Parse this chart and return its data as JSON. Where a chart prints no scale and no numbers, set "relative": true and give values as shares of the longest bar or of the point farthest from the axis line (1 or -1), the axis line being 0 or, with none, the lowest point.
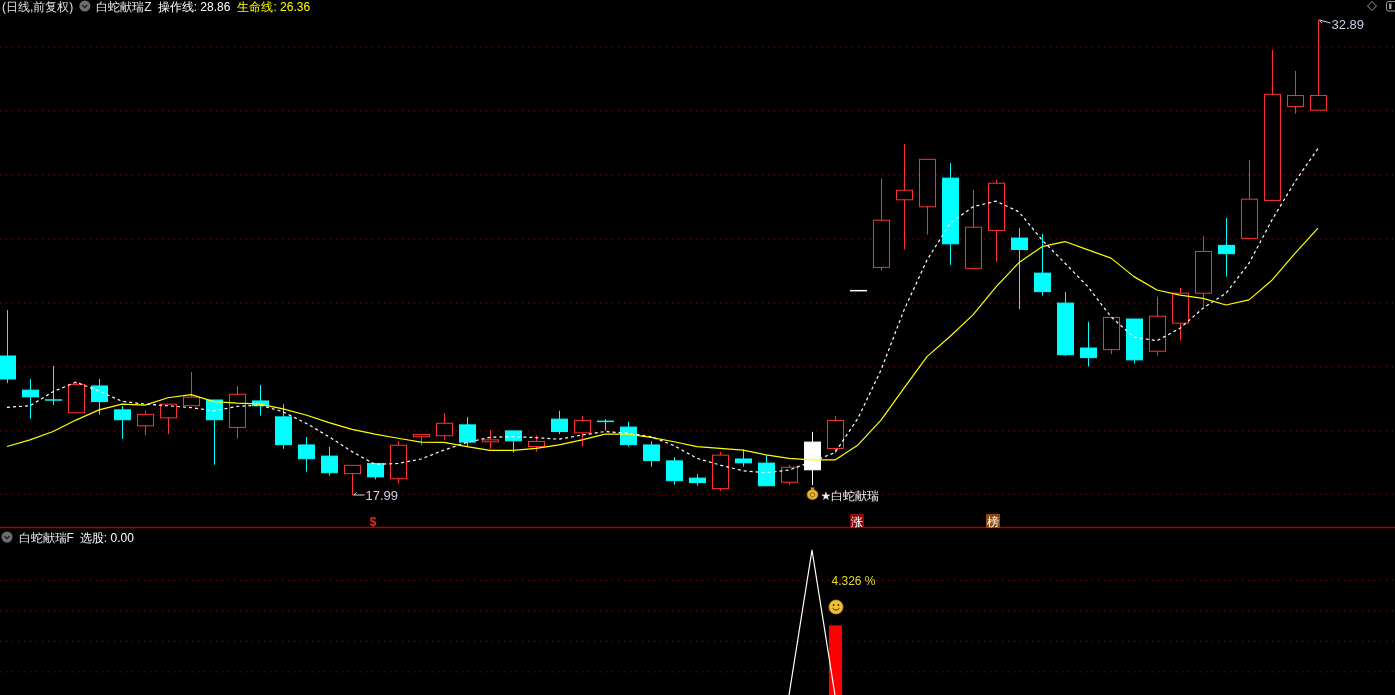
{
  "chart_data": [
    {
      "type": "candlestick",
      "title": "(日线,前复权)",
      "legend_title": "白蛇献瑞Z",
      "legend": "top left",
      "ref_lines": [
        {
          "axis": "y",
          "value": 18.01,
          "color": "#7a1414",
          "line_style": "dotted"
        },
        {
          "axis": "y",
          "value": 20.0,
          "color": "#7a1414",
          "line_style": "dotted"
        },
        {
          "axis": "y",
          "value": 22.01,
          "color": "#7a1414",
          "line_style": "dotted"
        },
        {
          "axis": "y",
          "value": 24.01,
          "color": "#7a1414",
          "line_style": "dotted"
        },
        {
          "axis": "y",
          "value": 26.02,
          "color": "#7a1414",
          "line_style": "dotted"
        },
        {
          "axis": "y",
          "value": 28.03,
          "color": "#7a1414",
          "line_style": "dotted"
        },
        {
          "axis": "y",
          "value": 30.04,
          "color": "#7a1414",
          "line_style": "dotted"
        },
        {
          "axis": "y",
          "value": 32.04,
          "color": "#7a1414",
          "line_style": "dotted"
        }
      ],
      "categories": [
        null,
        null,
        null,
        null,
        null,
        null,
        null,
        null,
        null,
        null,
        null,
        null,
        null,
        null,
        null,
        null,
        null,
        null,
        null,
        null,
        null,
        null,
        null,
        null,
        null,
        null,
        null,
        null,
        null,
        null,
        null,
        null,
        null,
        null,
        null,
        null,
        null,
        null,
        null,
        null,
        null,
        null,
        null,
        null,
        null,
        null,
        null,
        null,
        null,
        null,
        null,
        null,
        null,
        null,
        null,
        null,
        null,
        null
      ],
      "ohlc": [
        [
          22.35,
          23.79,
          21.5,
          21.63
        ],
        [
          21.28,
          21.63,
          20.38,
          21.07
        ],
        [
          20.97,
          22.04,
          20.81,
          20.97
        ],
        [
          20.57,
          21.54,
          20.57,
          21.46
        ],
        [
          21.41,
          21.63,
          20.51,
          20.92
        ],
        [
          20.66,
          20.78,
          19.75,
          20.35
        ],
        [
          20.16,
          20.63,
          19.87,
          20.52
        ],
        [
          20.41,
          20.84,
          19.9,
          20.84
        ],
        [
          20.79,
          21.85,
          20.79,
          21.06
        ],
        [
          20.97,
          20.97,
          18.94,
          20.35
        ],
        [
          20.11,
          21.41,
          19.76,
          21.15
        ],
        [
          20.94,
          21.44,
          20.48,
          20.79
        ],
        [
          20.44,
          20.84,
          19.44,
          19.57
        ],
        [
          19.56,
          19.81,
          18.72,
          19.13
        ],
        [
          19.21,
          19.5,
          18.6,
          18.69
        ],
        [
          18.66,
          18.92,
          17.99,
          18.92
        ],
        [
          18.98,
          18.98,
          18.48,
          18.56
        ],
        [
          18.5,
          19.68,
          18.36,
          19.55
        ],
        [
          19.82,
          19.89,
          19.54,
          19.89
        ],
        [
          19.85,
          20.56,
          19.72,
          20.24
        ],
        [
          20.19,
          20.44,
          19.5,
          19.65
        ],
        [
          19.66,
          20.03,
          19.43,
          19.72
        ],
        [
          20.0,
          20.0,
          19.32,
          19.69
        ],
        [
          19.51,
          19.86,
          19.35,
          19.67
        ],
        [
          20.37,
          20.63,
          19.9,
          19.98
        ],
        [
          19.94,
          20.47,
          19.51,
          20.33
        ],
        [
          20.3,
          20.37,
          20.01,
          20.3
        ],
        [
          20.12,
          20.28,
          19.51,
          19.57
        ],
        [
          19.56,
          19.68,
          18.88,
          19.07
        ],
        [
          19.06,
          19.18,
          18.31,
          18.44
        ],
        [
          18.52,
          18.65,
          18.28,
          18.38
        ],
        [
          18.19,
          19.34,
          18.12,
          19.24
        ],
        [
          19.12,
          19.42,
          18.88,
          19.0
        ],
        [
          18.99,
          19.24,
          18.28,
          18.28
        ],
        [
          18.39,
          18.93,
          18.31,
          18.86
        ],
        [
          18.78,
          19.97,
          18.3,
          19.65
        ],
        [
          19.45,
          20.47,
          19.3,
          20.33
        ],
        [
          24.4,
          24.4,
          24.4,
          24.4
        ],
        [
          25.13,
          27.92,
          25.03,
          26.61
        ],
        [
          27.25,
          29.0,
          25.69,
          27.55
        ],
        [
          27.03,
          28.52,
          26.16,
          28.52
        ],
        [
          27.93,
          28.4,
          25.21,
          25.87
        ],
        [
          25.1,
          27.56,
          25.1,
          26.39
        ],
        [
          26.29,
          27.87,
          25.31,
          27.77
        ],
        [
          26.05,
          26.37,
          23.82,
          25.69
        ],
        [
          24.95,
          26.18,
          24.24,
          24.37
        ],
        [
          24.01,
          24.36,
          22.36,
          22.39
        ],
        [
          22.6,
          23.42,
          22.02,
          22.3
        ],
        [
          22.55,
          23.56,
          22.41,
          23.56
        ],
        [
          23.51,
          23.51,
          22.12,
          22.23
        ],
        [
          22.5,
          24.21,
          22.36,
          23.6
        ],
        [
          23.38,
          24.49,
          22.83,
          24.32
        ],
        [
          24.32,
          26.11,
          23.9,
          25.63
        ],
        [
          25.82,
          26.68,
          24.84,
          25.56
        ],
        [
          26.04,
          28.5,
          26.04,
          27.27
        ],
        [
          27.23,
          31.95,
          27.23,
          30.56
        ],
        [
          30.18,
          31.29,
          29.95,
          30.52
        ],
        [
          30.06,
          32.89,
          30.06,
          30.52
        ]
      ],
      "colors": [
        "#00ffff",
        "#00ffff",
        "#00ffff",
        "#ff3232",
        "#00ffff",
        "#00ffff",
        "#ff3232",
        "#ff3232",
        "#ff3232",
        "#00ffff",
        "#ff3232",
        "#00ffff",
        "#00ffff",
        "#00ffff",
        "#00ffff",
        "#ff3232",
        "#00ffff",
        "#ff3232",
        "#ff3232",
        "#ff3232",
        "#00ffff",
        "#ff3232",
        "#00ffff",
        "#ff3232",
        "#00ffff",
        "#ff3232",
        "#00ffff",
        "#00ffff",
        "#00ffff",
        "#00ffff",
        "#00ffff",
        "#ff3232",
        "#00ffff",
        "#00ffff",
        "#ff3232",
        "#ffffff",
        "#ff3232",
        "#ffffff",
        "#ff3232",
        "#ff3232",
        "#ff3232",
        "#00ffff",
        "#ff3232",
        "#ff3232",
        "#00ffff",
        "#00ffff",
        "#00ffff",
        "#00ffff",
        "#ff3232",
        "#00ffff",
        "#ff3232",
        "#ff3232",
        "#ff3232",
        "#00ffff",
        "#ff3232",
        "#ff3232",
        "#ff3232",
        "#ff3232"
      ],
      "series": [
        {
          "name": "操作线: 28.86",
          "type": "line",
          "color": "#ffffff",
          "line_style": "dashed",
          "values": [
            20.74,
            20.79,
            21.23,
            21.53,
            21.25,
            20.93,
            20.84,
            20.79,
            20.73,
            20.63,
            20.77,
            20.81,
            20.6,
            20.24,
            19.82,
            19.35,
            18.95,
            18.98,
            19.12,
            19.4,
            19.64,
            19.8,
            19.82,
            19.79,
            19.74,
            19.87,
            19.98,
            19.93,
            19.82,
            19.54,
            19.14,
            18.93,
            18.75,
            18.69,
            18.77,
            19.04,
            19.32,
            20.4,
            21.91,
            23.79,
            25.36,
            26.51,
            27.03,
            27.21,
            26.87,
            25.99,
            25.26,
            24.52,
            23.58,
            22.94,
            22.83,
            23.22,
            23.85,
            24.32,
            25.26,
            26.62,
            27.82,
            28.86
          ]
        },
        {
          "name": "生命线: 26.36",
          "type": "line",
          "color": "#ffff00",
          "values": [
            19.51,
            19.72,
            19.98,
            20.34,
            20.66,
            20.84,
            20.81,
            21.04,
            21.14,
            20.92,
            20.87,
            20.84,
            20.69,
            20.5,
            20.26,
            20.05,
            19.9,
            19.77,
            19.65,
            19.64,
            19.51,
            19.39,
            19.39,
            19.45,
            19.56,
            19.72,
            19.9,
            19.9,
            19.8,
            19.66,
            19.51,
            19.45,
            19.4,
            19.25,
            19.14,
            19.09,
            19.09,
            19.56,
            20.34,
            21.34,
            22.33,
            22.96,
            23.64,
            24.52,
            25.28,
            25.78,
            25.94,
            25.68,
            25.42,
            24.84,
            24.42,
            24.26,
            24.16,
            23.95,
            24.11,
            24.73,
            25.57,
            26.36
          ]
        }
      ],
      "annotations": [
        "17.99",
        "32.89",
        "★白蛇献瑞",
        "$",
        "涨",
        "榜"
      ]
    },
    {
      "type": "line",
      "legend_title": "白蛇献瑞F",
      "legend": "top left",
      "relative": true,
      "ref_lines": [
        {
          "axis": "y",
          "value": 0.16,
          "color": "#7a1414",
          "line_style": "dotted"
        },
        {
          "axis": "y",
          "value": 0.37,
          "color": "#7a1414",
          "line_style": "dotted"
        },
        {
          "axis": "y",
          "value": 0.58,
          "color": "#7a1414",
          "line_style": "dotted"
        },
        {
          "axis": "y",
          "value": 0.79,
          "color": "#7a1414",
          "line_style": "dotted"
        }
      ],
      "categories": [
        null,
        null,
        null,
        null,
        null,
        null,
        null,
        null,
        null,
        null,
        null,
        null,
        null,
        null,
        null,
        null,
        null,
        null,
        null,
        null,
        null,
        null,
        null,
        null,
        null,
        null,
        null,
        null,
        null,
        null,
        null,
        null,
        null,
        null,
        null,
        null,
        null,
        null,
        null,
        null,
        null,
        null,
        null,
        null,
        null,
        null,
        null,
        null,
        null,
        null,
        null,
        null,
        null,
        null,
        null,
        null,
        null,
        null
      ],
      "series": [
        {
          "name": "选股: 0.00",
          "color": "#ffffff",
          "values": [
            null,
            null,
            null,
            null,
            null,
            null,
            null,
            null,
            null,
            null,
            null,
            null,
            null,
            null,
            null,
            null,
            null,
            null,
            null,
            null,
            null,
            null,
            null,
            null,
            null,
            null,
            null,
            null,
            null,
            null,
            null,
            null,
            null,
            null,
            0,
            1,
            0,
            null,
            null,
            null,
            null,
            null,
            null,
            null,
            null,
            null,
            null,
            null,
            null,
            null,
            null,
            null,
            null,
            null,
            null,
            null,
            null,
            null
          ]
        },
        {
          "type": "bar",
          "color": "#ff0000",
          "values": [
            null,
            null,
            null,
            null,
            null,
            null,
            null,
            null,
            null,
            null,
            null,
            null,
            null,
            null,
            null,
            null,
            null,
            null,
            null,
            null,
            null,
            null,
            null,
            null,
            null,
            null,
            null,
            null,
            null,
            null,
            null,
            null,
            null,
            null,
            null,
            null,
            0.48,
            null,
            null,
            null,
            null,
            null,
            null,
            null,
            null,
            null,
            null,
            null,
            null,
            null,
            null,
            null,
            null,
            null,
            null,
            null,
            null,
            null
          ]
        }
      ],
      "annotations": [
        "4.326 %"
      ]
    }
  ]
}
